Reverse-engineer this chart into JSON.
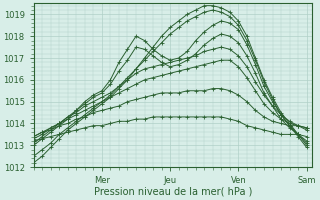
{
  "xlabel": "Pression niveau de la mer( hPa )",
  "bg_color": "#d8eee8",
  "grid_color": "#b0d0c8",
  "line_color": "#2a6030",
  "tick_color": "#2a6030",
  "ylim": [
    1012,
    1019.5
  ],
  "yticks": [
    1012,
    1013,
    1014,
    1015,
    1016,
    1017,
    1018,
    1019
  ],
  "day_labels": [
    "Mer",
    "Jeu",
    "Ven",
    "Sam"
  ],
  "day_positions": [
    48,
    96,
    144,
    192
  ],
  "total_hours": 196,
  "lines": [
    {
      "x": [
        0,
        6,
        12,
        18,
        24,
        30,
        36,
        42,
        48,
        54,
        60,
        66,
        72,
        78,
        84,
        90,
        96,
        102,
        108,
        114,
        120,
        126,
        132,
        138,
        144,
        150,
        156,
        162,
        168,
        174,
        180,
        186,
        192
      ],
      "y": [
        1012.2,
        1012.5,
        1012.9,
        1013.3,
        1013.7,
        1014.0,
        1014.3,
        1014.6,
        1014.9,
        1015.2,
        1015.6,
        1016.0,
        1016.5,
        1017.0,
        1017.5,
        1018.0,
        1018.4,
        1018.7,
        1019.0,
        1019.2,
        1019.4,
        1019.4,
        1019.3,
        1019.1,
        1018.7,
        1018.0,
        1017.0,
        1016.0,
        1015.2,
        1014.5,
        1014.0,
        1013.5,
        1013.0
      ]
    },
    {
      "x": [
        0,
        6,
        12,
        18,
        24,
        30,
        36,
        42,
        48,
        54,
        60,
        66,
        72,
        78,
        84,
        90,
        96,
        102,
        108,
        114,
        120,
        126,
        132,
        138,
        144,
        150,
        156,
        162,
        168,
        174,
        180,
        186,
        192
      ],
      "y": [
        1012.5,
        1012.8,
        1013.1,
        1013.5,
        1013.8,
        1014.1,
        1014.4,
        1014.7,
        1015.0,
        1015.3,
        1015.7,
        1016.1,
        1016.5,
        1016.9,
        1017.3,
        1017.7,
        1018.1,
        1018.4,
        1018.7,
        1018.9,
        1019.1,
        1019.2,
        1019.1,
        1018.9,
        1018.5,
        1017.8,
        1016.9,
        1015.9,
        1015.1,
        1014.4,
        1013.9,
        1013.4,
        1012.9
      ]
    },
    {
      "x": [
        0,
        6,
        12,
        18,
        24,
        30,
        36,
        42,
        48,
        54,
        60,
        66,
        72,
        78,
        84,
        90,
        96,
        102,
        108,
        114,
        120,
        126,
        132,
        138,
        144,
        150,
        156,
        162,
        168,
        174,
        180,
        186,
        192
      ],
      "y": [
        1013.0,
        1013.3,
        1013.6,
        1013.9,
        1014.2,
        1014.6,
        1015.0,
        1015.3,
        1015.5,
        1016.0,
        1016.8,
        1017.4,
        1018.0,
        1017.8,
        1017.4,
        1017.1,
        1016.9,
        1017.0,
        1017.3,
        1017.8,
        1018.2,
        1018.5,
        1018.7,
        1018.6,
        1018.3,
        1017.6,
        1016.7,
        1015.7,
        1015.0,
        1014.4,
        1013.9,
        1013.5,
        1013.1
      ]
    },
    {
      "x": [
        0,
        6,
        12,
        18,
        24,
        30,
        36,
        42,
        48,
        54,
        60,
        66,
        72,
        78,
        84,
        90,
        96,
        102,
        108,
        114,
        120,
        126,
        132,
        138,
        144,
        150,
        156,
        162,
        168,
        174,
        180,
        186,
        192
      ],
      "y": [
        1013.1,
        1013.4,
        1013.7,
        1014.0,
        1014.3,
        1014.6,
        1014.9,
        1015.2,
        1015.4,
        1015.8,
        1016.4,
        1016.9,
        1017.5,
        1017.4,
        1017.1,
        1016.8,
        1016.6,
        1016.7,
        1016.9,
        1017.2,
        1017.6,
        1017.9,
        1018.1,
        1018.0,
        1017.7,
        1017.1,
        1016.3,
        1015.4,
        1014.8,
        1014.2,
        1013.8,
        1013.5,
        1013.2
      ]
    },
    {
      "x": [
        0,
        6,
        12,
        18,
        24,
        30,
        36,
        42,
        48,
        54,
        60,
        66,
        72,
        78,
        84,
        90,
        96,
        102,
        108,
        114,
        120,
        126,
        132,
        138,
        144,
        150,
        156,
        162,
        168,
        174,
        180,
        186,
        192
      ],
      "y": [
        1013.3,
        1013.5,
        1013.8,
        1014.0,
        1014.3,
        1014.5,
        1014.8,
        1015.0,
        1015.2,
        1015.4,
        1015.7,
        1016.0,
        1016.3,
        1016.5,
        1016.6,
        1016.7,
        1016.8,
        1016.9,
        1017.0,
        1017.1,
        1017.3,
        1017.4,
        1017.5,
        1017.4,
        1017.1,
        1016.6,
        1015.9,
        1015.3,
        1014.8,
        1014.4,
        1014.1,
        1013.9,
        1013.7
      ]
    },
    {
      "x": [
        0,
        6,
        12,
        18,
        24,
        30,
        36,
        42,
        48,
        54,
        60,
        66,
        72,
        78,
        84,
        90,
        96,
        102,
        108,
        114,
        120,
        126,
        132,
        138,
        144,
        150,
        156,
        162,
        168,
        174,
        180,
        186,
        192
      ],
      "y": [
        1013.4,
        1013.6,
        1013.8,
        1014.0,
        1014.2,
        1014.4,
        1014.6,
        1014.8,
        1015.0,
        1015.2,
        1015.4,
        1015.6,
        1015.8,
        1016.0,
        1016.1,
        1016.2,
        1016.3,
        1016.4,
        1016.5,
        1016.6,
        1016.7,
        1016.8,
        1016.9,
        1016.9,
        1016.6,
        1016.1,
        1015.5,
        1014.9,
        1014.5,
        1014.2,
        1014.0,
        1013.9,
        1013.8
      ]
    },
    {
      "x": [
        0,
        6,
        12,
        18,
        24,
        30,
        36,
        42,
        48,
        54,
        60,
        66,
        72,
        78,
        84,
        90,
        96,
        102,
        108,
        114,
        120,
        126,
        132,
        138,
        144,
        150,
        156,
        162,
        168,
        174,
        180,
        186,
        192
      ],
      "y": [
        1013.4,
        1013.6,
        1013.7,
        1013.9,
        1014.0,
        1014.2,
        1014.3,
        1014.5,
        1014.6,
        1014.7,
        1014.8,
        1015.0,
        1015.1,
        1015.2,
        1015.3,
        1015.4,
        1015.4,
        1015.4,
        1015.5,
        1015.5,
        1015.5,
        1015.6,
        1015.6,
        1015.5,
        1015.3,
        1015.0,
        1014.6,
        1014.3,
        1014.1,
        1014.0,
        1013.9,
        1013.9,
        1013.8
      ]
    },
    {
      "x": [
        0,
        6,
        12,
        18,
        24,
        30,
        36,
        42,
        48,
        54,
        60,
        66,
        72,
        78,
        84,
        90,
        96,
        102,
        108,
        114,
        120,
        126,
        132,
        138,
        144,
        150,
        156,
        162,
        168,
        174,
        180,
        186,
        192
      ],
      "y": [
        1013.2,
        1013.3,
        1013.4,
        1013.5,
        1013.6,
        1013.7,
        1013.8,
        1013.9,
        1013.9,
        1014.0,
        1014.1,
        1014.1,
        1014.2,
        1014.2,
        1014.3,
        1014.3,
        1014.3,
        1014.3,
        1014.3,
        1014.3,
        1014.3,
        1014.3,
        1014.3,
        1014.2,
        1014.1,
        1013.9,
        1013.8,
        1013.7,
        1013.6,
        1013.5,
        1013.5,
        1013.5,
        1013.4
      ]
    }
  ]
}
